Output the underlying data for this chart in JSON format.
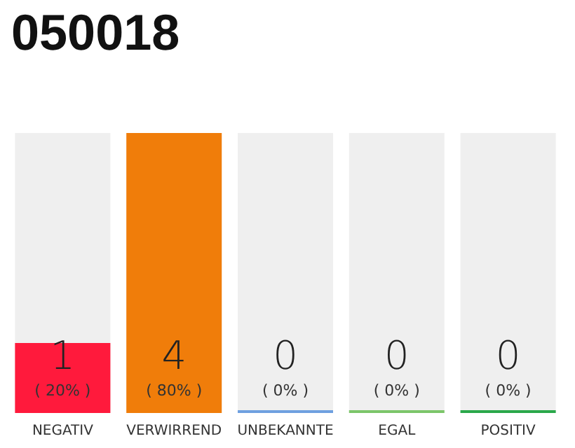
{
  "chart_data": {
    "type": "bar",
    "title": "050018",
    "categories": [
      "NEGATIV",
      "VERWIRREND",
      "UNBEKANNTE",
      "EGAL",
      "POSITIV"
    ],
    "values": [
      1,
      4,
      0,
      0,
      0
    ],
    "colors": [
      "#ff1a3c",
      "#f07d0a",
      "#6fa0e0",
      "#7cc66a",
      "#2aa84a"
    ],
    "value_labels": [
      "1\n( 20% )",
      "4\n( 80% )",
      "0\n( 0% )",
      "0\n( 0% )",
      "0\n( 0% )"
    ]
  }
}
